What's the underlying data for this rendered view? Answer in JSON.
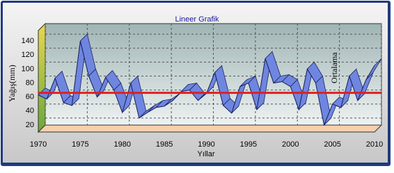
{
  "chart_data": {
    "type": "line",
    "title": "Lineer Grafik",
    "x_label": "Yıllar",
    "y_label": "Yağış(mm)",
    "x": [
      1970,
      1971,
      1972,
      1973,
      1974,
      1975,
      1976,
      1977,
      1978,
      1979,
      1980,
      1981,
      1982,
      1983,
      1984,
      1985,
      1986,
      1987,
      1988,
      1989,
      1990,
      1991,
      1992,
      1993,
      1994,
      1995,
      1996,
      1997,
      1998,
      1999,
      2000,
      2001,
      2002,
      2003,
      2004,
      2005,
      2006,
      2007,
      2008,
      2009,
      2010
    ],
    "values": [
      63,
      57,
      87,
      52,
      48,
      140,
      90,
      60,
      88,
      70,
      38,
      80,
      30,
      38,
      45,
      47,
      55,
      68,
      70,
      55,
      65,
      95,
      48,
      37,
      75,
      80,
      42,
      115,
      80,
      82,
      75,
      42,
      100,
      80,
      20,
      50,
      45,
      90,
      55,
      85,
      105
    ],
    "color": "#6f86e0",
    "mean_line": {
      "value": 66,
      "label": "Ortalama",
      "color": "#e02020"
    },
    "xlim": [
      1970,
      2010
    ],
    "xticks": [
      1970,
      1975,
      1980,
      1985,
      1990,
      1995,
      2000,
      2005,
      2010
    ],
    "ylim": [
      10,
      155
    ],
    "yticks": [
      20,
      40,
      60,
      80,
      100,
      120,
      140
    ],
    "grid": true
  }
}
